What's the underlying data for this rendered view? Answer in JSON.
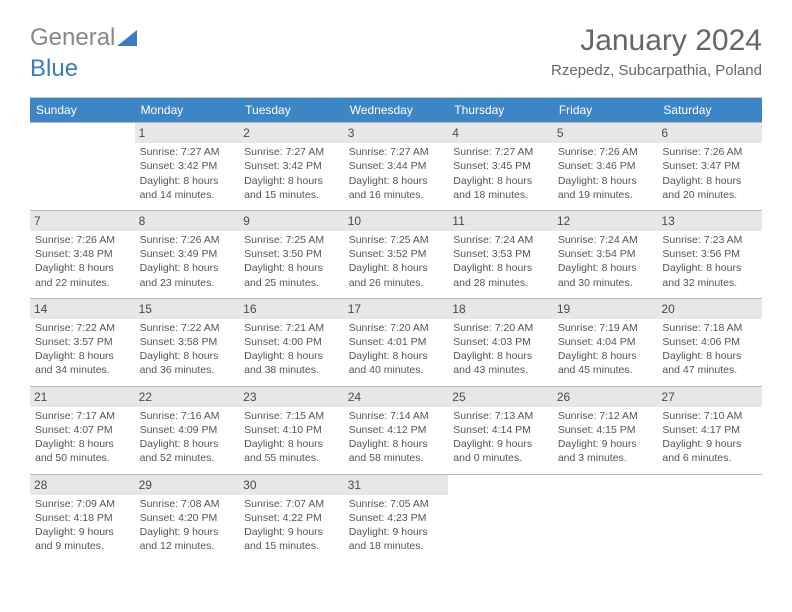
{
  "brand": {
    "part1": "General",
    "part2": "Blue"
  },
  "title": "January 2024",
  "location": "Rzepedz, Subcarpathia, Poland",
  "colors": {
    "header_bg": "#3d86c6",
    "header_bg_alt": "#3d86c6",
    "daynum_bg": "#e7e7e7",
    "border": "#b8b8b8",
    "text": "#555555"
  },
  "weekdays": [
    "Sunday",
    "Monday",
    "Tuesday",
    "Wednesday",
    "Thursday",
    "Friday",
    "Saturday"
  ],
  "start_offset": 1,
  "days": [
    {
      "n": 1,
      "sunrise": "7:27 AM",
      "sunset": "3:42 PM",
      "daylight": "8 hours and 14 minutes."
    },
    {
      "n": 2,
      "sunrise": "7:27 AM",
      "sunset": "3:42 PM",
      "daylight": "8 hours and 15 minutes."
    },
    {
      "n": 3,
      "sunrise": "7:27 AM",
      "sunset": "3:44 PM",
      "daylight": "8 hours and 16 minutes."
    },
    {
      "n": 4,
      "sunrise": "7:27 AM",
      "sunset": "3:45 PM",
      "daylight": "8 hours and 18 minutes."
    },
    {
      "n": 5,
      "sunrise": "7:26 AM",
      "sunset": "3:46 PM",
      "daylight": "8 hours and 19 minutes."
    },
    {
      "n": 6,
      "sunrise": "7:26 AM",
      "sunset": "3:47 PM",
      "daylight": "8 hours and 20 minutes."
    },
    {
      "n": 7,
      "sunrise": "7:26 AM",
      "sunset": "3:48 PM",
      "daylight": "8 hours and 22 minutes."
    },
    {
      "n": 8,
      "sunrise": "7:26 AM",
      "sunset": "3:49 PM",
      "daylight": "8 hours and 23 minutes."
    },
    {
      "n": 9,
      "sunrise": "7:25 AM",
      "sunset": "3:50 PM",
      "daylight": "8 hours and 25 minutes."
    },
    {
      "n": 10,
      "sunrise": "7:25 AM",
      "sunset": "3:52 PM",
      "daylight": "8 hours and 26 minutes."
    },
    {
      "n": 11,
      "sunrise": "7:24 AM",
      "sunset": "3:53 PM",
      "daylight": "8 hours and 28 minutes."
    },
    {
      "n": 12,
      "sunrise": "7:24 AM",
      "sunset": "3:54 PM",
      "daylight": "8 hours and 30 minutes."
    },
    {
      "n": 13,
      "sunrise": "7:23 AM",
      "sunset": "3:56 PM",
      "daylight": "8 hours and 32 minutes."
    },
    {
      "n": 14,
      "sunrise": "7:22 AM",
      "sunset": "3:57 PM",
      "daylight": "8 hours and 34 minutes."
    },
    {
      "n": 15,
      "sunrise": "7:22 AM",
      "sunset": "3:58 PM",
      "daylight": "8 hours and 36 minutes."
    },
    {
      "n": 16,
      "sunrise": "7:21 AM",
      "sunset": "4:00 PM",
      "daylight": "8 hours and 38 minutes."
    },
    {
      "n": 17,
      "sunrise": "7:20 AM",
      "sunset": "4:01 PM",
      "daylight": "8 hours and 40 minutes."
    },
    {
      "n": 18,
      "sunrise": "7:20 AM",
      "sunset": "4:03 PM",
      "daylight": "8 hours and 43 minutes."
    },
    {
      "n": 19,
      "sunrise": "7:19 AM",
      "sunset": "4:04 PM",
      "daylight": "8 hours and 45 minutes."
    },
    {
      "n": 20,
      "sunrise": "7:18 AM",
      "sunset": "4:06 PM",
      "daylight": "8 hours and 47 minutes."
    },
    {
      "n": 21,
      "sunrise": "7:17 AM",
      "sunset": "4:07 PM",
      "daylight": "8 hours and 50 minutes."
    },
    {
      "n": 22,
      "sunrise": "7:16 AM",
      "sunset": "4:09 PM",
      "daylight": "8 hours and 52 minutes."
    },
    {
      "n": 23,
      "sunrise": "7:15 AM",
      "sunset": "4:10 PM",
      "daylight": "8 hours and 55 minutes."
    },
    {
      "n": 24,
      "sunrise": "7:14 AM",
      "sunset": "4:12 PM",
      "daylight": "8 hours and 58 minutes."
    },
    {
      "n": 25,
      "sunrise": "7:13 AM",
      "sunset": "4:14 PM",
      "daylight": "9 hours and 0 minutes."
    },
    {
      "n": 26,
      "sunrise": "7:12 AM",
      "sunset": "4:15 PM",
      "daylight": "9 hours and 3 minutes."
    },
    {
      "n": 27,
      "sunrise": "7:10 AM",
      "sunset": "4:17 PM",
      "daylight": "9 hours and 6 minutes."
    },
    {
      "n": 28,
      "sunrise": "7:09 AM",
      "sunset": "4:18 PM",
      "daylight": "9 hours and 9 minutes."
    },
    {
      "n": 29,
      "sunrise": "7:08 AM",
      "sunset": "4:20 PM",
      "daylight": "9 hours and 12 minutes."
    },
    {
      "n": 30,
      "sunrise": "7:07 AM",
      "sunset": "4:22 PM",
      "daylight": "9 hours and 15 minutes."
    },
    {
      "n": 31,
      "sunrise": "7:05 AM",
      "sunset": "4:23 PM",
      "daylight": "9 hours and 18 minutes."
    }
  ],
  "labels": {
    "sunrise": "Sunrise:",
    "sunset": "Sunset:",
    "daylight": "Daylight:"
  }
}
